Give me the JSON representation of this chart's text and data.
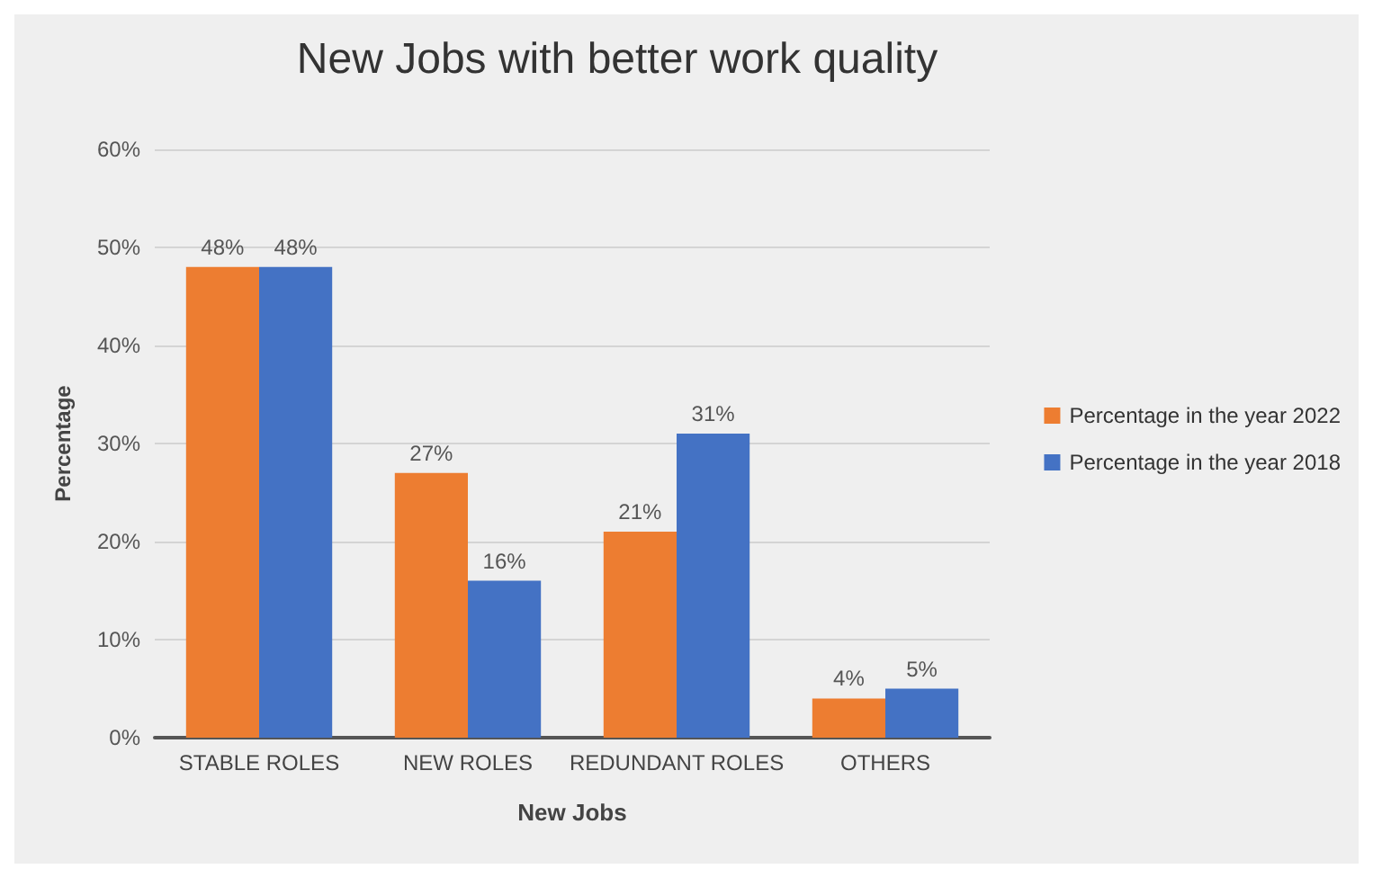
{
  "chart_data": {
    "type": "bar",
    "title": "New Jobs with better work quality",
    "xlabel": "New Jobs",
    "ylabel": "Percentage",
    "categories": [
      "STABLE ROLES",
      "NEW ROLES",
      "REDUNDANT ROLES",
      "OTHERS"
    ],
    "series": [
      {
        "name": "Percentage in the year 2022",
        "color": "#ed7d31",
        "values": [
          48,
          27,
          21,
          4
        ],
        "value_labels": [
          "48%",
          "27%",
          "21%",
          "4%"
        ]
      },
      {
        "name": "Percentage in the year 2018",
        "color": "#4472c4",
        "values": [
          48,
          16,
          31,
          5
        ],
        "value_labels": [
          "48%",
          "16%",
          "31%",
          "5%"
        ]
      }
    ],
    "ylim": [
      0,
      60
    ],
    "yticks": [
      {
        "value": 0,
        "label": "0%"
      },
      {
        "value": 10,
        "label": "10%"
      },
      {
        "value": 20,
        "label": "20%"
      },
      {
        "value": 30,
        "label": "30%"
      },
      {
        "value": 40,
        "label": "40%"
      },
      {
        "value": 50,
        "label": "50%"
      },
      {
        "value": 60,
        "label": "60%"
      }
    ],
    "grid": "y",
    "legend": "right"
  }
}
